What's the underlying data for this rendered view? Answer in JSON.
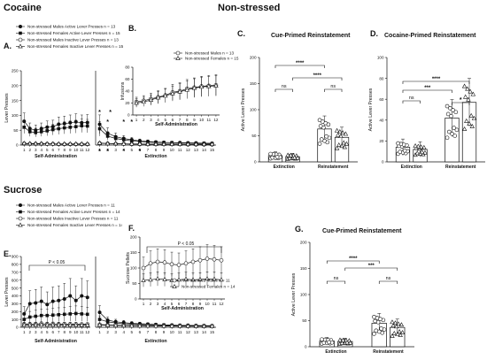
{
  "sections": {
    "cocaine": "Cocaine",
    "nonstressed": "Non-stressed",
    "sucrose": "Sucrose"
  },
  "panel_letters": {
    "A": "A.",
    "B": "B.",
    "C": "C.",
    "D": "D.",
    "E": "E.",
    "F": "F.",
    "G": "G."
  },
  "legend_A": [
    "Non-stressed Males Active Lever Presses n = 13",
    "Non-stressed Females Active Lever Presses n = 15",
    "Non-stressed Males Inactive Lever Presses n = 13",
    "Non-stressed Females Inactive Lever Presses n = 15"
  ],
  "legend_B": [
    "Non-stressed Males n = 13",
    "Non-stressed Females n = 15"
  ],
  "legend_E": [
    "Non-stressed Males Active Lever Presses n = 11",
    "Non-stressed Females Active Lever Presses n = 14",
    "Non-stressed Males Inactive Lever Presses n = 11",
    "Non-stressed Females Inactive Lever Presses n = 14"
  ],
  "legend_F": [
    "Non-stressed Males n = 11",
    "Non-stressed Females n = 14"
  ],
  "colors": {
    "ink": "#111111",
    "grey": "#777777",
    "bar": "#ffffff"
  },
  "chart_data": [
    {
      "id": "A",
      "type": "line",
      "ylabel": "Lever Presses",
      "xlabel_left": "Self-Administration",
      "xlabel_right": "Extinction",
      "ylim": [
        0,
        250
      ],
      "yticks": [
        0,
        50,
        100,
        150,
        200,
        250
      ],
      "x_left": [
        1,
        2,
        3,
        4,
        5,
        6,
        7,
        8,
        9,
        10,
        11,
        12
      ],
      "x_right": [
        1,
        2,
        3,
        4,
        5,
        6,
        7,
        8,
        9,
        10,
        11,
        12,
        13,
        14,
        15
      ],
      "series": [
        {
          "name": "Non-stressed Males Active Lever Presses n = 13",
          "left": [
            80,
            55,
            50,
            55,
            60,
            62,
            70,
            72,
            75,
            78,
            75,
            76
          ],
          "right": [
            70,
            40,
            28,
            22,
            18,
            14,
            12,
            10,
            9,
            8,
            8,
            7,
            7,
            6,
            6
          ]
        },
        {
          "name": "Non-stressed Females Active Lever Presses n = 15",
          "left": [
            60,
            45,
            42,
            45,
            48,
            52,
            55,
            58,
            60,
            62,
            65,
            64
          ],
          "right": [
            55,
            30,
            22,
            18,
            14,
            12,
            10,
            9,
            8,
            8,
            7,
            7,
            6,
            6,
            5
          ]
        },
        {
          "name": "Non-stressed Males Inactive Lever Presses n = 13",
          "left": [
            5,
            4,
            4,
            4,
            4,
            4,
            3,
            3,
            3,
            3,
            3,
            3
          ],
          "right": [
            6,
            5,
            4,
            4,
            3,
            3,
            3,
            3,
            3,
            3,
            3,
            2,
            2,
            2,
            2
          ]
        },
        {
          "name": "Non-stressed Females Inactive Lever Presses n = 15",
          "left": [
            6,
            5,
            5,
            5,
            4,
            4,
            4,
            4,
            4,
            4,
            4,
            4
          ],
          "right": [
            7,
            5,
            5,
            4,
            4,
            4,
            3,
            3,
            3,
            3,
            3,
            3,
            3,
            3,
            3
          ]
        }
      ],
      "sig_top": [
        "*",
        "*",
        "*",
        "*",
        "*"
      ],
      "sig_bottom": [
        "*",
        "*",
        "*",
        "*"
      ]
    },
    {
      "id": "B",
      "type": "line",
      "ylabel": "Infusions",
      "xlabel": "Self-Administration",
      "ylim": [
        0,
        80
      ],
      "yticks": [
        0,
        20,
        40,
        60,
        80
      ],
      "x": [
        1,
        2,
        3,
        4,
        5,
        6,
        7,
        8,
        9,
        10,
        11,
        12
      ],
      "series": [
        {
          "name": "Non-stressed Males n = 13",
          "values": [
            22,
            24,
            27,
            30,
            33,
            38,
            40,
            44,
            46,
            48,
            49,
            50
          ]
        },
        {
          "name": "Non-stressed Females n = 15",
          "values": [
            20,
            22,
            25,
            29,
            32,
            36,
            39,
            42,
            45,
            47,
            48,
            49
          ]
        }
      ]
    },
    {
      "id": "C",
      "type": "bar",
      "title": "Cue-Primed Reinstatement",
      "ylabel": "Active Lever Presses",
      "ylim": [
        0,
        200
      ],
      "yticks": [
        0,
        50,
        100,
        150,
        200
      ],
      "groups": [
        "Extinction",
        "Reinstatement"
      ],
      "values": [
        [
          12,
          10
        ],
        [
          63,
          47
        ]
      ],
      "sig": [
        "****",
        "****",
        "ns",
        "ns"
      ]
    },
    {
      "id": "D",
      "type": "bar",
      "title": "Cocaine-Primed Reinstatement",
      "ylabel": "Active Lever Presses",
      "ylim": [
        0,
        100
      ],
      "yticks": [
        0,
        20,
        40,
        60,
        80,
        100
      ],
      "groups": [
        "Extinction",
        "Reinstatement"
      ],
      "values": [
        [
          14,
          12
        ],
        [
          42,
          57
        ]
      ],
      "sig": [
        "****",
        "***",
        "ns",
        "*"
      ]
    },
    {
      "id": "E",
      "type": "line",
      "ylabel": "Lever Presses",
      "xlabel_left": "Self-Administration",
      "xlabel_right": "Extinction",
      "ylim": [
        0,
        900
      ],
      "yticks": [
        0,
        100,
        200,
        300,
        400,
        500,
        600,
        700,
        800,
        900
      ],
      "x_left": [
        1,
        2,
        3,
        4,
        5,
        6,
        7,
        8,
        9,
        10,
        11,
        12
      ],
      "x_right": [
        1,
        2,
        3,
        4,
        5,
        6,
        7,
        8,
        9,
        10,
        11,
        12,
        13,
        14,
        15
      ],
      "p_text": "P < 0.05",
      "series": [
        {
          "name": "Non-stressed Males Active Lever Presses n = 11",
          "left": [
            170,
            300,
            310,
            330,
            290,
            330,
            340,
            360,
            400,
            340,
            400,
            380
          ],
          "right": [
            190,
            90,
            70,
            60,
            50,
            45,
            40,
            35,
            30,
            28,
            25,
            25,
            22,
            20,
            20
          ]
        },
        {
          "name": "Non-stressed Females Active Lever Presses n = 14",
          "left": [
            100,
            130,
            140,
            150,
            150,
            155,
            160,
            165,
            170,
            175,
            170,
            165
          ],
          "right": [
            100,
            70,
            55,
            45,
            40,
            35,
            32,
            30,
            28,
            25,
            23,
            22,
            20,
            20,
            18
          ]
        },
        {
          "name": "Non-stressed Males Inactive Lever Presses n = 11",
          "left": [
            40,
            40,
            42,
            45,
            42,
            43,
            40,
            42,
            40,
            40,
            38,
            38
          ],
          "right": [
            35,
            30,
            28,
            25,
            22,
            22,
            20,
            20,
            18,
            18,
            17,
            16,
            16,
            15,
            15
          ]
        },
        {
          "name": "Non-stressed Females Inactive Lever Presses n = 14",
          "left": [
            30,
            30,
            30,
            32,
            30,
            30,
            30,
            28,
            28,
            28,
            27,
            27
          ],
          "right": [
            28,
            25,
            22,
            20,
            18,
            18,
            17,
            16,
            15,
            15,
            14,
            14,
            13,
            13,
            12
          ]
        }
      ]
    },
    {
      "id": "F",
      "type": "line",
      "ylabel": "Sucrose Pellets",
      "xlabel": "Self-Administration",
      "ylim": [
        0,
        200
      ],
      "yticks": [
        0,
        50,
        100,
        150,
        200
      ],
      "x": [
        1,
        2,
        3,
        4,
        5,
        6,
        7,
        8,
        9,
        10,
        11,
        12
      ],
      "p_text": "P < 0.05",
      "series": [
        {
          "name": "Non-stressed Males n = 11",
          "values": [
            100,
            115,
            120,
            118,
            112,
            110,
            115,
            120,
            125,
            130,
            128,
            125
          ]
        },
        {
          "name": "Non-stressed Females n = 14",
          "values": [
            60,
            62,
            65,
            63,
            60,
            62,
            64,
            62,
            63,
            65,
            64,
            62
          ]
        }
      ]
    },
    {
      "id": "G",
      "type": "bar",
      "title": "Cue-Primed Reinstatement",
      "ylabel": "Active Lever Presses",
      "ylim": [
        0,
        200
      ],
      "yticks": [
        0,
        50,
        100,
        150,
        200
      ],
      "groups": [
        "Extinction",
        "Reinstatement"
      ],
      "values": [
        [
          11,
          10
        ],
        [
          45,
          37
        ]
      ],
      "sig": [
        "****",
        "***",
        "ns",
        "ns"
      ]
    }
  ]
}
